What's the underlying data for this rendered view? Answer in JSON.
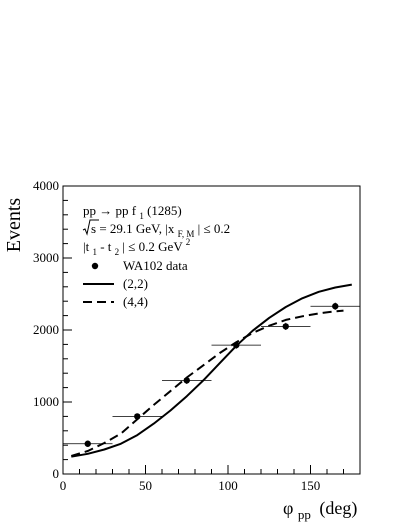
{
  "chart_data": {
    "type": "line",
    "ylabel": "Events",
    "xlabel": {
      "symbol": "φ",
      "subscript": "pp",
      "unit": "(deg)"
    },
    "xlim": [
      0,
      180
    ],
    "ylim": [
      0,
      4000
    ],
    "x_ticks": [
      0,
      50,
      100,
      150
    ],
    "y_ticks": [
      0,
      1000,
      2000,
      3000,
      4000
    ],
    "grid": false,
    "legend_position": "top-left",
    "annotations": {
      "line1": {
        "main": "pp → pp f",
        "sub": "1",
        "tail": "(1285)"
      },
      "line2": {
        "root": "s",
        "mid": " = 29.1 GeV,  |x",
        "sub": "F, M",
        "tail": "| ≤ 0.2"
      },
      "line3": {
        "a": "|t",
        "a_sub": "1",
        "b": " - t",
        "b_sub": "2",
        "c": "| ≤ 0.2 GeV",
        "sup": "2"
      }
    },
    "series": [
      {
        "name": "WA102 data",
        "style": "markers",
        "points": [
          {
            "x": 15,
            "y": 420,
            "xerr": 15,
            "yerr": 30
          },
          {
            "x": 45,
            "y": 800,
            "xerr": 15,
            "yerr": 40
          },
          {
            "x": 75,
            "y": 1300,
            "xerr": 15,
            "yerr": 50
          },
          {
            "x": 105,
            "y": 1790,
            "xerr": 15,
            "yerr": 50
          },
          {
            "x": 135,
            "y": 2050,
            "xerr": 15,
            "yerr": 50
          },
          {
            "x": 165,
            "y": 2330,
            "xerr": 15,
            "yerr": 50
          }
        ]
      },
      {
        "name": "(2,2)",
        "style": "solid",
        "x": [
          5,
          15,
          25,
          35,
          45,
          55,
          65,
          75,
          85,
          95,
          105,
          115,
          125,
          135,
          145,
          155,
          165,
          175
        ],
        "y": [
          240,
          280,
          340,
          420,
          540,
          700,
          880,
          1080,
          1300,
          1540,
          1780,
          1990,
          2170,
          2320,
          2440,
          2530,
          2590,
          2630
        ]
      },
      {
        "name": "(4,4)",
        "style": "dashed",
        "x": [
          5,
          15,
          25,
          35,
          45,
          55,
          65,
          75,
          85,
          95,
          105,
          115,
          125,
          135,
          145,
          155,
          165,
          170
        ],
        "y": [
          250,
          320,
          430,
          560,
          760,
          960,
          1150,
          1340,
          1510,
          1680,
          1830,
          1960,
          2060,
          2140,
          2190,
          2230,
          2260,
          2270
        ]
      }
    ]
  }
}
